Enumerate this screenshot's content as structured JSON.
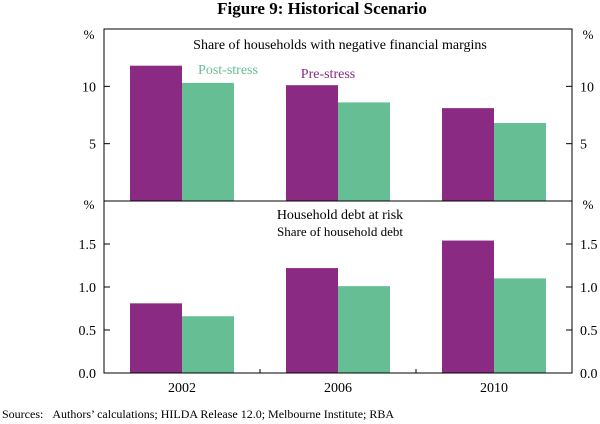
{
  "figure": {
    "title": "Figure 9: Historical Scenario",
    "sources": "Sources:   Authors’ calculations; HILDA Release 12.0; Melbourne Institute; RBA"
  },
  "colors": {
    "pre": "#8b2a83",
    "post": "#66bf94"
  },
  "chart_data": [
    {
      "type": "bar",
      "title": "Share of households with negative financial margins",
      "unit": "%",
      "categories": [
        "2002",
        "2006",
        "2010"
      ],
      "series": [
        {
          "name": "Pre-stress",
          "values": [
            11.8,
            10.1,
            8.1
          ]
        },
        {
          "name": "Post-stress",
          "values": [
            10.3,
            8.6,
            6.8
          ]
        }
      ],
      "ylim": [
        0,
        15
      ],
      "ticks": [
        5,
        10
      ],
      "tick_labels": [
        "5",
        "10"
      ],
      "annotations": [
        "Post-stress",
        "Pre-stress"
      ]
    },
    {
      "type": "bar",
      "title": "Household debt at risk",
      "subtitle": "Share of household debt",
      "unit": "%",
      "categories": [
        "2002",
        "2006",
        "2010"
      ],
      "series": [
        {
          "name": "Pre-stress",
          "values": [
            0.81,
            1.22,
            1.54
          ]
        },
        {
          "name": "Post-stress",
          "values": [
            0.66,
            1.01,
            1.1
          ]
        }
      ],
      "ylim": [
        0,
        2.0
      ],
      "ticks": [
        0,
        0.5,
        1.0,
        1.5
      ],
      "tick_labels": [
        "0.0",
        "0.5",
        "1.0",
        "1.5"
      ]
    }
  ]
}
